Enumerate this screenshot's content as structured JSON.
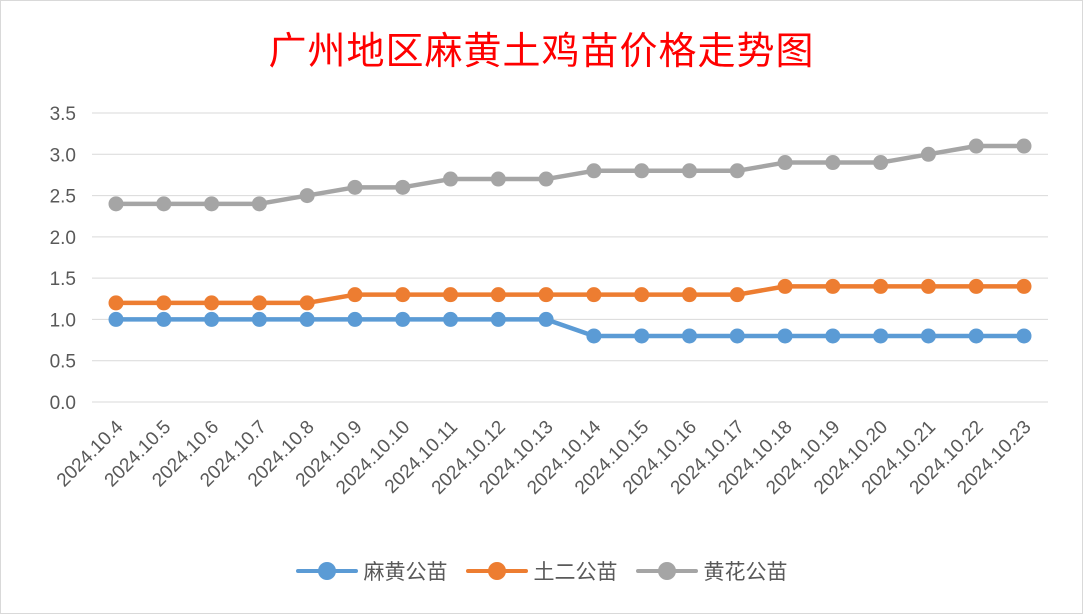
{
  "chart_data": {
    "type": "line",
    "title": "广州地区麻黄土鸡苗价格走势图",
    "categories": [
      "2024.10.4",
      "2024.10.5",
      "2024.10.6",
      "2024.10.7",
      "2024.10.8",
      "2024.10.9",
      "2024.10.10",
      "2024.10.11",
      "2024.10.12",
      "2024.10.13",
      "2024.10.14",
      "2024.10.15",
      "2024.10.16",
      "2024.10.17",
      "2024.10.18",
      "2024.10.19",
      "2024.10.20",
      "2024.10.21",
      "2024.10.22",
      "2024.10.23"
    ],
    "series": [
      {
        "name": "麻黄公苗",
        "color": "#5b9bd5",
        "values": [
          1.0,
          1.0,
          1.0,
          1.0,
          1.0,
          1.0,
          1.0,
          1.0,
          1.0,
          1.0,
          0.8,
          0.8,
          0.8,
          0.8,
          0.8,
          0.8,
          0.8,
          0.8,
          0.8,
          0.8
        ]
      },
      {
        "name": "土二公苗",
        "color": "#ed7d31",
        "values": [
          1.2,
          1.2,
          1.2,
          1.2,
          1.2,
          1.3,
          1.3,
          1.3,
          1.3,
          1.3,
          1.3,
          1.3,
          1.3,
          1.3,
          1.4,
          1.4,
          1.4,
          1.4,
          1.4,
          1.4
        ]
      },
      {
        "name": "黄花公苗",
        "color": "#a5a5a5",
        "values": [
          2.4,
          2.4,
          2.4,
          2.4,
          2.5,
          2.6,
          2.6,
          2.7,
          2.7,
          2.7,
          2.8,
          2.8,
          2.8,
          2.8,
          2.9,
          2.9,
          2.9,
          3.0,
          3.1,
          3.1
        ]
      }
    ],
    "y_ticks": [
      "0.0",
      "0.5",
      "1.0",
      "1.5",
      "2.0",
      "2.5",
      "3.0",
      "3.5"
    ],
    "ylim": [
      0,
      3.5
    ],
    "grid": true,
    "legend_position": "bottom"
  }
}
